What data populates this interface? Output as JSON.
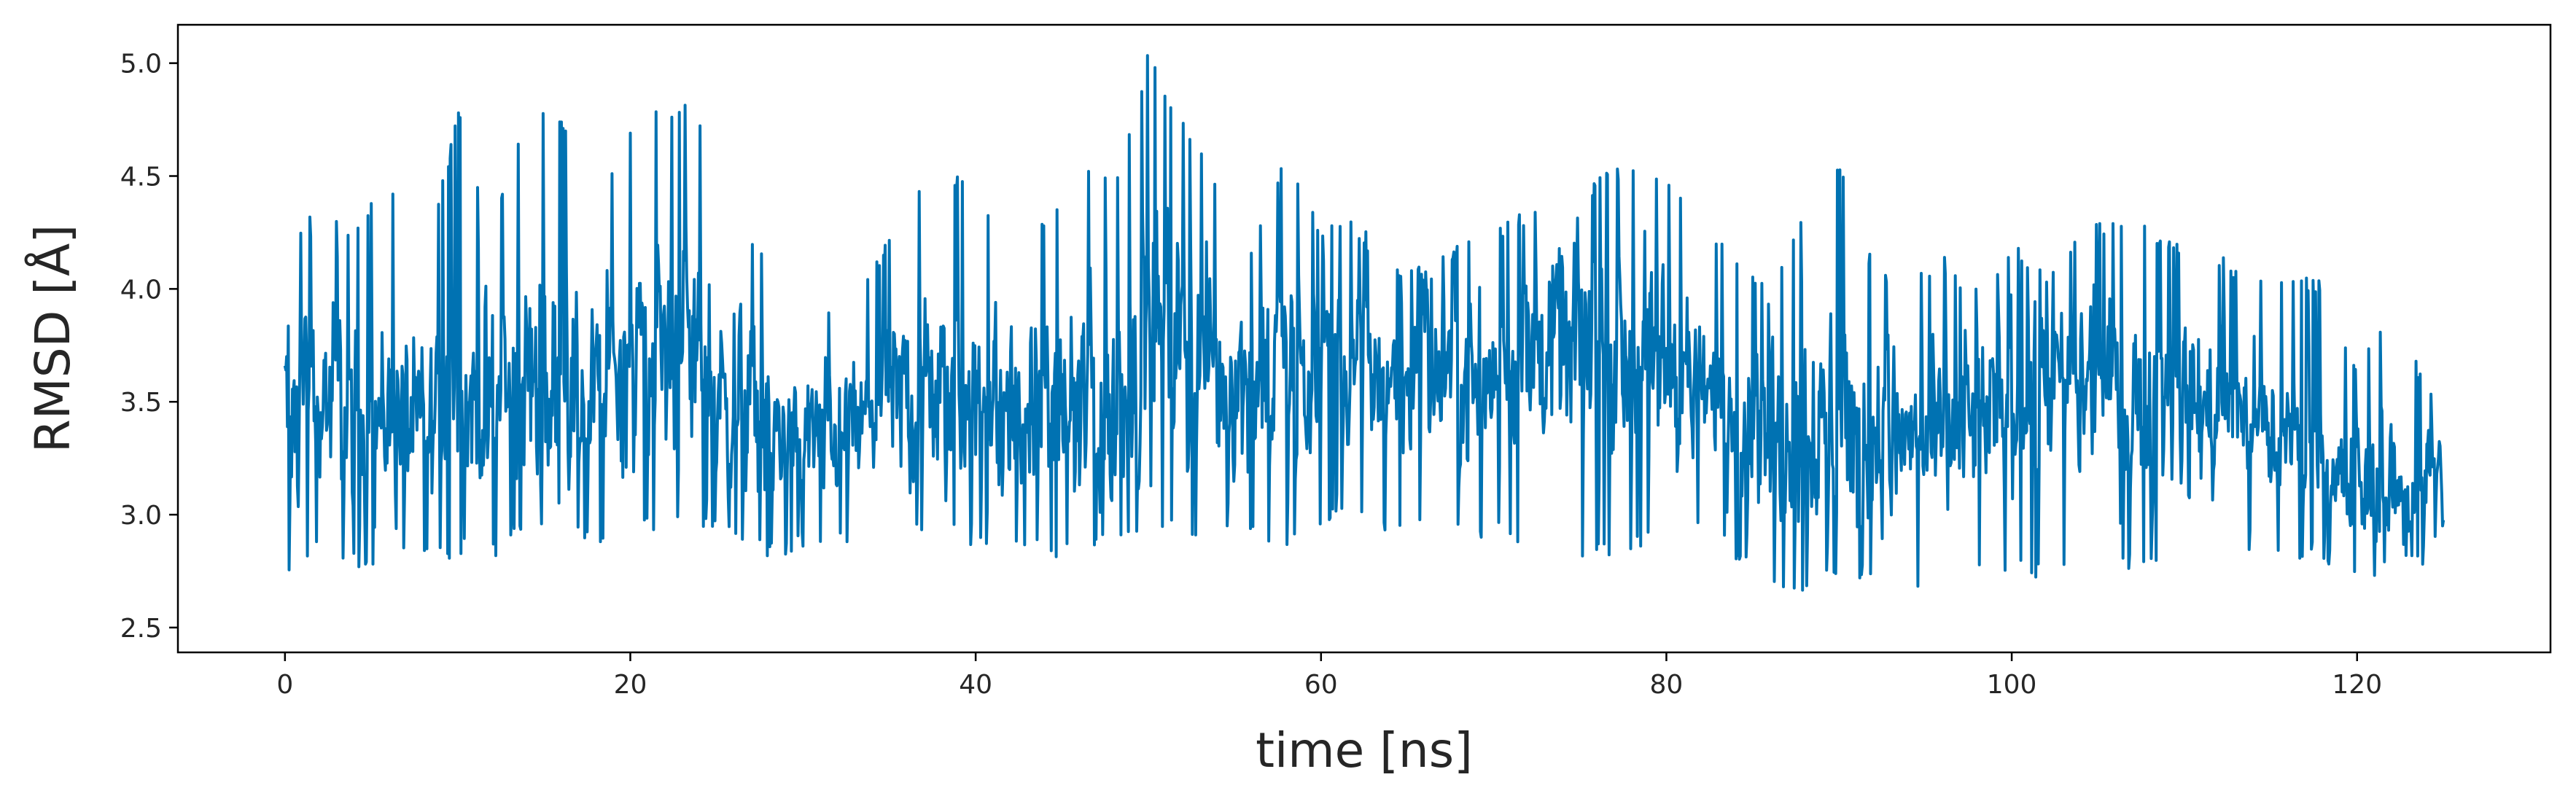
{
  "chart_data": {
    "type": "line",
    "title": "",
    "xlabel": "time [ns]",
    "ylabel": "RMSD [Å]",
    "xlim": [
      -6.2,
      131.2
    ],
    "ylim": [
      2.39,
      5.17
    ],
    "xticks": [
      0,
      20,
      40,
      60,
      80,
      100,
      120
    ],
    "xtick_labels": [
      "0",
      "20",
      "40",
      "60",
      "80",
      "100",
      "120"
    ],
    "yticks": [
      2.5,
      3.0,
      3.5,
      4.0,
      4.5,
      5.0
    ],
    "ytick_labels": [
      "2.5",
      "3.0",
      "3.5",
      "4.0",
      "4.5",
      "5.0"
    ],
    "grid": false,
    "legend": "none",
    "line_color": "#0072b2",
    "series": [
      {
        "x": [
          0,
          2,
          4,
          6,
          8,
          10,
          12,
          14,
          16,
          18,
          20,
          22,
          24,
          26,
          28,
          30,
          32,
          34,
          36,
          38,
          40,
          42,
          44,
          46,
          48,
          50,
          52,
          54,
          56,
          58,
          60,
          62,
          64,
          66,
          68,
          70,
          72,
          74,
          76,
          78,
          80,
          82,
          84,
          86,
          88,
          90,
          92,
          94,
          96,
          98,
          100,
          102,
          104,
          106,
          108,
          110,
          112,
          114,
          116,
          118,
          120,
          122,
          124,
          125
        ],
        "y_low": [
          2.7,
          2.85,
          2.75,
          2.8,
          2.8,
          2.78,
          2.8,
          2.95,
          2.95,
          2.85,
          2.9,
          2.95,
          2.95,
          2.85,
          2.8,
          2.85,
          2.85,
          2.85,
          2.9,
          2.9,
          2.85,
          2.85,
          2.8,
          2.8,
          2.85,
          2.95,
          2.9,
          2.9,
          2.9,
          2.85,
          2.95,
          2.95,
          2.9,
          2.9,
          2.9,
          2.9,
          2.85,
          2.8,
          2.8,
          2.85,
          2.85,
          2.9,
          2.8,
          2.65,
          2.65,
          2.7,
          2.7,
          2.7,
          2.55,
          2.75,
          2.75,
          2.7,
          2.8,
          2.75,
          2.75,
          2.75,
          2.8,
          2.8,
          2.8,
          2.8,
          2.7,
          2.75,
          2.75,
          2.9
        ],
        "y_high": [
          4.2,
          4.4,
          4.3,
          4.5,
          4.1,
          4.8,
          4.3,
          4.85,
          4.8,
          4.3,
          4.75,
          4.85,
          4.8,
          4.4,
          4.1,
          4.0,
          3.95,
          4.1,
          4.4,
          4.6,
          4.4,
          4.4,
          4.3,
          4.6,
          4.5,
          5.05,
          4.75,
          4.5,
          4.2,
          4.6,
          4.3,
          4.3,
          4.15,
          4.1,
          4.2,
          4.3,
          4.35,
          4.4,
          4.5,
          4.6,
          4.55,
          4.3,
          4.15,
          4.0,
          4.4,
          4.6,
          4.1,
          4.1,
          4.15,
          4.0,
          4.2,
          4.1,
          4.3,
          4.3,
          4.3,
          4.2,
          4.15,
          4.1,
          4.05,
          4.05,
          3.7,
          3.9,
          3.6,
          3.55
        ],
        "y_center": [
          3.5,
          3.55,
          3.4,
          3.45,
          3.4,
          3.5,
          3.5,
          3.6,
          3.55,
          3.6,
          3.7,
          3.75,
          3.7,
          3.5,
          3.4,
          3.35,
          3.4,
          3.4,
          3.55,
          3.5,
          3.45,
          3.45,
          3.45,
          3.45,
          3.4,
          3.8,
          3.7,
          3.65,
          3.6,
          3.65,
          3.65,
          3.6,
          3.65,
          3.6,
          3.6,
          3.65,
          3.7,
          3.75,
          3.75,
          3.7,
          3.65,
          3.55,
          3.45,
          3.35,
          3.45,
          3.4,
          3.35,
          3.35,
          3.3,
          3.4,
          3.5,
          3.55,
          3.55,
          3.5,
          3.5,
          3.5,
          3.45,
          3.4,
          3.3,
          3.2,
          3.1,
          3.1,
          3.15,
          3.2
        ]
      }
    ]
  }
}
